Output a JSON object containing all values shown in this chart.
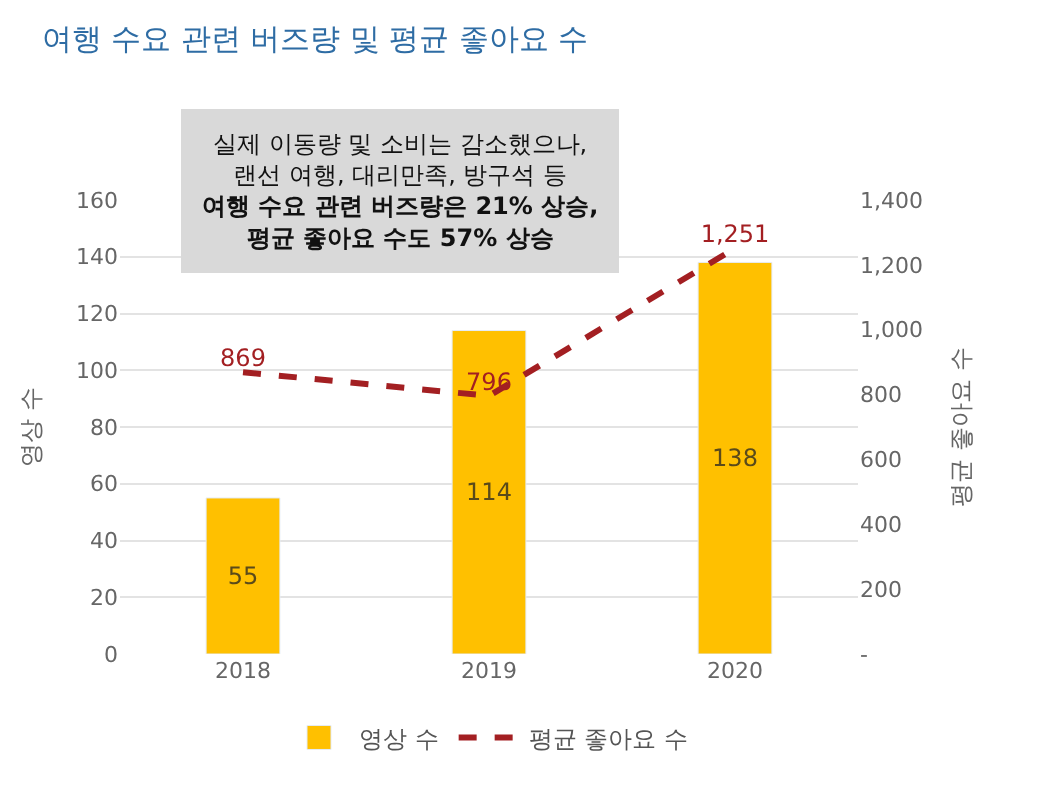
{
  "chart_data": {
    "type": "bar",
    "title": "여행 수요 관련 버즈량 및 평균 좋아요 수",
    "categories": [
      "2018",
      "2019",
      "2020"
    ],
    "series": [
      {
        "name": "영상 수",
        "color": "#ffc000",
        "values": [
          55,
          114,
          138
        ],
        "value_labels": [
          "55",
          "114",
          "138"
        ]
      },
      {
        "name": "평균 좋아요 수",
        "type": "line",
        "axis": "y2",
        "color": "#a31f22",
        "line_style": "dashed",
        "values": [
          869,
          796,
          1251
        ],
        "value_labels": [
          "869",
          "796",
          "1,251"
        ]
      }
    ],
    "ylabel": "영상 수",
    "y2label": "평균 좋아요 수",
    "ylim": [
      0,
      160
    ],
    "yticks": [
      0,
      20,
      40,
      60,
      80,
      100,
      120,
      140,
      160
    ],
    "y2lim": [
      0,
      1400
    ],
    "y2ticks": [
      {
        "value": 0,
        "label": "-"
      },
      {
        "value": 200,
        "label": "200"
      },
      {
        "value": 400,
        "label": "400"
      },
      {
        "value": 600,
        "label": "600"
      },
      {
        "value": 800,
        "label": "800"
      },
      {
        "value": 1000,
        "label": "1,000"
      },
      {
        "value": 1200,
        "label": "1,200"
      },
      {
        "value": 1400,
        "label": "1,400"
      }
    ],
    "annotations": [
      "실제 이동량 및 소비는 감소했으나,\n랜선 여행, 대리만족, 방구석 등",
      "여행 수요 관련 버즈량은 21% 상승,\n평균 좋아요 수도 57% 상승"
    ],
    "grid": "y",
    "legend": "bottom",
    "marker": "none"
  }
}
